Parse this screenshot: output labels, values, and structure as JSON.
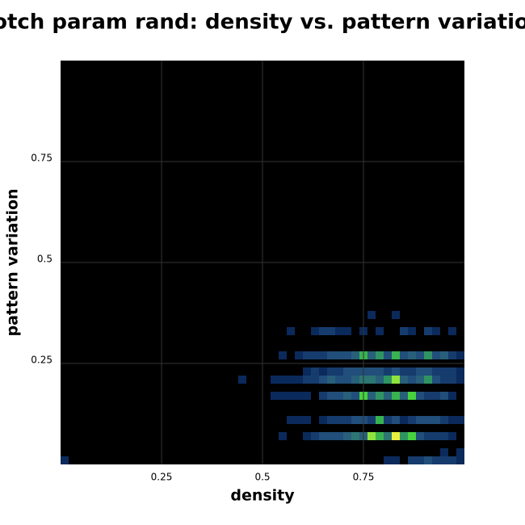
{
  "chart_data": {
    "type": "heatmap",
    "title": "notch param rand: density vs. pattern variation",
    "xlabel": "density",
    "ylabel": "pattern variation",
    "xlim": [
      0,
      1
    ],
    "ylim": [
      0,
      1
    ],
    "xticks": [
      0.25,
      0.5,
      0.75
    ],
    "yticks": [
      0.25,
      0.5,
      0.75
    ],
    "grid": true,
    "background": "#000000",
    "colormap": [
      "#0b2a5c",
      "#1f4a7a",
      "#2d6a7a",
      "#2fa05a",
      "#4ad83a",
      "#e8f040"
    ],
    "rows": [
      {
        "y": 0.36,
        "x": [
          0.76,
          0.82
        ],
        "counts": [
          1,
          1
        ]
      },
      {
        "y": 0.32,
        "x": [
          0.56,
          0.62,
          0.64,
          0.66,
          0.68,
          0.7,
          0.74,
          0.78,
          0.84,
          0.86,
          0.9,
          0.92,
          0.96
        ],
        "counts": [
          1,
          1,
          2,
          2,
          1,
          1,
          1,
          1,
          2,
          1,
          2,
          1,
          1
        ]
      },
      {
        "y": 0.26,
        "x": [
          0.54,
          0.58,
          0.6,
          0.62,
          0.64,
          0.66,
          0.68,
          0.7,
          0.72,
          0.74,
          0.76,
          0.78,
          0.8,
          0.82,
          0.84,
          0.86,
          0.88,
          0.9,
          0.92,
          0.94,
          0.96,
          0.98
        ],
        "counts": [
          1,
          1,
          2,
          2,
          2,
          3,
          3,
          3,
          4,
          7,
          4,
          6,
          3,
          7,
          3,
          4,
          3,
          6,
          3,
          4,
          2,
          1
        ]
      },
      {
        "y": 0.22,
        "x": [
          0.6,
          0.62,
          0.64,
          0.66,
          0.68,
          0.7,
          0.72,
          0.74,
          0.76,
          0.78,
          0.8,
          0.82,
          0.84,
          0.86,
          0.88,
          0.9,
          0.92,
          0.94,
          0.96,
          0.98
        ],
        "counts": [
          1,
          2,
          1,
          2,
          2,
          3,
          3,
          3,
          3,
          3,
          2,
          3,
          2,
          2,
          3,
          3,
          2,
          2,
          2,
          1
        ]
      },
      {
        "y": 0.2,
        "x": [
          0.44,
          0.52,
          0.54,
          0.56,
          0.58,
          0.6,
          0.62,
          0.64,
          0.66,
          0.68,
          0.7,
          0.72,
          0.74,
          0.76,
          0.78,
          0.8,
          0.82,
          0.84,
          0.86,
          0.88,
          0.9,
          0.92,
          0.94,
          0.96,
          0.98
        ],
        "counts": [
          1,
          1,
          1,
          1,
          1,
          2,
          2,
          3,
          4,
          3,
          3,
          4,
          5,
          5,
          4,
          6,
          9,
          4,
          3,
          4,
          6,
          3,
          2,
          2,
          1
        ]
      },
      {
        "y": 0.16,
        "x": [
          0.52,
          0.54,
          0.56,
          0.58,
          0.6,
          0.64,
          0.66,
          0.68,
          0.7,
          0.72,
          0.74,
          0.76,
          0.78,
          0.8,
          0.82,
          0.84,
          0.86,
          0.88,
          0.9,
          0.92,
          0.94,
          0.96
        ],
        "counts": [
          1,
          1,
          1,
          1,
          1,
          2,
          3,
          3,
          4,
          3,
          8,
          4,
          6,
          4,
          7,
          4,
          8,
          3,
          2,
          2,
          3,
          1
        ]
      },
      {
        "y": 0.1,
        "x": [
          0.56,
          0.58,
          0.6,
          0.64,
          0.66,
          0.68,
          0.7,
          0.72,
          0.74,
          0.76,
          0.78,
          0.8,
          0.82,
          0.84,
          0.86,
          0.88,
          0.9,
          0.92,
          0.94,
          0.96,
          0.98
        ],
        "counts": [
          1,
          1,
          1,
          1,
          2,
          2,
          2,
          3,
          3,
          2,
          7,
          2,
          3,
          1,
          2,
          3,
          3,
          3,
          2,
          1,
          1
        ]
      },
      {
        "y": 0.06,
        "x": [
          0.54,
          0.6,
          0.62,
          0.64,
          0.66,
          0.68,
          0.7,
          0.72,
          0.74,
          0.76,
          0.78,
          0.8,
          0.82,
          0.84,
          0.86,
          0.88,
          0.9,
          0.92,
          0.94,
          0.96
        ],
        "counts": [
          1,
          1,
          2,
          3,
          3,
          3,
          4,
          5,
          4,
          9,
          7,
          5,
          10,
          6,
          8,
          3,
          2,
          2,
          2,
          1
        ]
      },
      {
        "y": 0.02,
        "x": [
          0.94,
          0.98
        ],
        "counts": [
          1,
          1
        ]
      },
      {
        "y": 0.0,
        "x": [
          0.0,
          0.8,
          0.82,
          0.86,
          0.88,
          0.9,
          0.92,
          0.94,
          0.96,
          0.98
        ],
        "counts": [
          1,
          1,
          1,
          2,
          2,
          3,
          2,
          2,
          2,
          1
        ]
      }
    ]
  }
}
